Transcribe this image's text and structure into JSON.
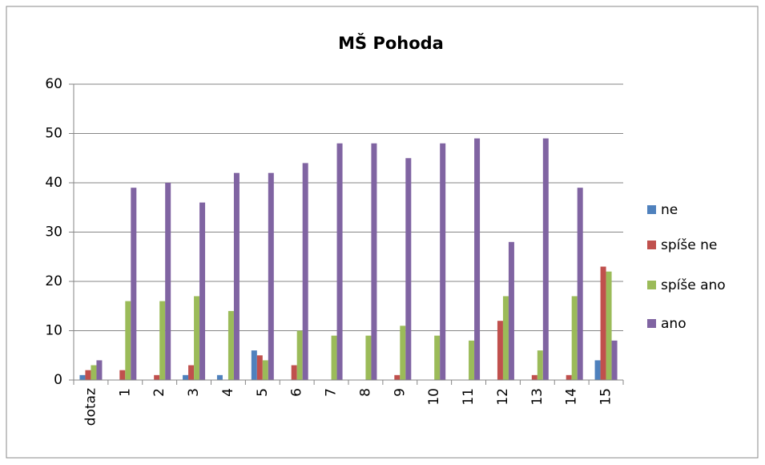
{
  "chart_data": {
    "type": "bar",
    "title": "MŠ Pohoda",
    "categories": [
      "dotaz",
      "1",
      "2",
      "3",
      "4",
      "5",
      "6",
      "7",
      "8",
      "9",
      "10",
      "11",
      "12",
      "13",
      "14",
      "15"
    ],
    "series": [
      {
        "name": "ne",
        "color": "#4f81bd",
        "values": [
          1,
          0,
          0,
          1,
          1,
          6,
          0,
          0,
          0,
          0,
          0,
          0,
          0,
          0,
          0,
          4
        ]
      },
      {
        "name": "spíše ne",
        "color": "#c0504d",
        "values": [
          2,
          2,
          1,
          3,
          0,
          5,
          3,
          0,
          0,
          1,
          0,
          0,
          12,
          1,
          1,
          23
        ]
      },
      {
        "name": "spíše ano",
        "color": "#9bbb59",
        "values": [
          3,
          16,
          16,
          17,
          14,
          4,
          10,
          9,
          9,
          11,
          9,
          8,
          17,
          6,
          17,
          22
        ]
      },
      {
        "name": "ano",
        "color": "#8064a2",
        "values": [
          4,
          39,
          40,
          36,
          42,
          42,
          44,
          48,
          48,
          45,
          48,
          49,
          28,
          49,
          39,
          8
        ]
      }
    ],
    "ylim": [
      0,
      60
    ],
    "yticks": [
      0,
      10,
      20,
      30,
      40,
      50,
      60
    ],
    "grid": true,
    "legend": "right"
  }
}
